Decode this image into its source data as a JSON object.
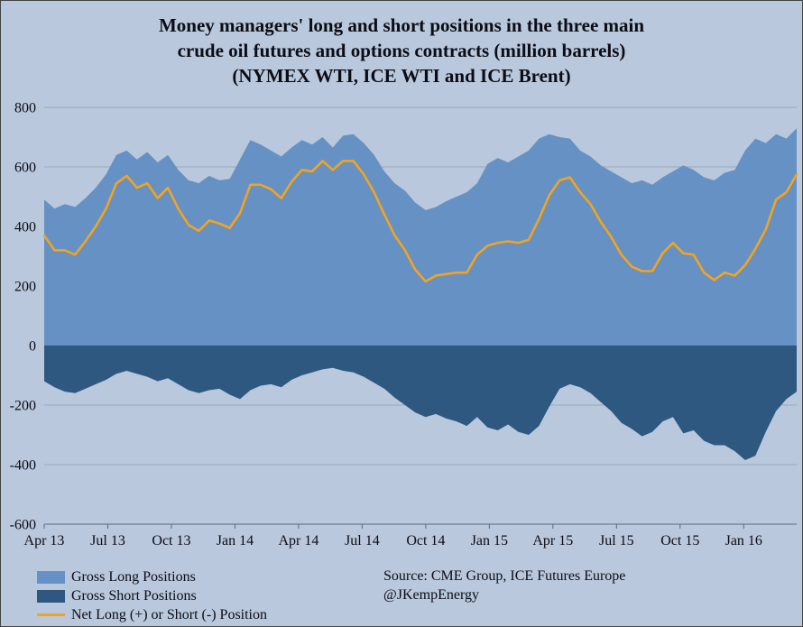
{
  "title": {
    "line1": "Money managers' long and short positions in the three main",
    "line2": "crude oil futures and options contracts (million barrels)",
    "line3": "(NYMEX WTI, ICE WTI and ICE Brent)"
  },
  "source": {
    "line1": "Source:  CME Group, ICE Futures Europe",
    "line2": "@JKempEnergy"
  },
  "legend": {
    "items": [
      {
        "label": "Gross Long Positions",
        "type": "area"
      },
      {
        "label": "Gross Short Positions",
        "type": "area"
      },
      {
        "label": "Net Long (+) or Short (-) Position",
        "type": "line"
      }
    ]
  },
  "colors": {
    "background": "#b9c8dc",
    "long_area": "#6591c4",
    "short_area": "#2e5880",
    "net_line": "#f2a41f",
    "grid": "#9aa9bd",
    "axis": "#5a6a80",
    "text": "#0c0c16"
  },
  "chart_data": {
    "type": "area",
    "title": "Money managers' long and short positions in the three main crude oil futures and options contracts (million barrels) (NYMEX WTI, ICE WTI and ICE Brent)",
    "xlabel": "",
    "ylabel": "",
    "ylim": [
      -600,
      800
    ],
    "yticks": [
      800,
      600,
      400,
      200,
      0,
      -200,
      -400,
      -600
    ],
    "grid": true,
    "legend_position": "bottom-left",
    "x_range_months": [
      0,
      35.5
    ],
    "xtick_months": [
      0,
      3,
      6,
      9,
      12,
      15,
      18,
      21,
      24,
      27,
      30,
      33
    ],
    "xtick_labels": [
      "Apr 13",
      "Jul 13",
      "Oct 13",
      "Jan 14",
      "Apr 14",
      "Jul 14",
      "Oct 14",
      "Jan 15",
      "Apr 15",
      "Jul 15",
      "Oct 15",
      "Jan 16"
    ],
    "series": [
      {
        "name": "Gross Long Positions",
        "values": [
          490,
          460,
          475,
          465,
          495,
          530,
          575,
          640,
          655,
          625,
          650,
          615,
          640,
          590,
          555,
          545,
          570,
          555,
          560,
          625,
          690,
          675,
          655,
          635,
          665,
          690,
          675,
          700,
          665,
          705,
          710,
          680,
          640,
          585,
          545,
          520,
          480,
          455,
          465,
          485,
          500,
          515,
          545,
          610,
          630,
          615,
          635,
          655,
          695,
          710,
          700,
          695,
          655,
          635,
          605,
          585,
          565,
          545,
          555,
          540,
          565,
          585,
          605,
          590,
          565,
          555,
          580,
          590,
          655,
          695,
          680,
          710,
          695,
          730
        ]
      },
      {
        "name": "Gross Short Positions",
        "values": [
          -120,
          -140,
          -155,
          -160,
          -145,
          -130,
          -115,
          -95,
          -85,
          -95,
          -105,
          -120,
          -110,
          -130,
          -150,
          -160,
          -150,
          -145,
          -165,
          -180,
          -150,
          -135,
          -130,
          -140,
          -115,
          -100,
          -90,
          -80,
          -75,
          -85,
          -90,
          -105,
          -125,
          -145,
          -175,
          -200,
          -225,
          -240,
          -230,
          -245,
          -255,
          -270,
          -240,
          -275,
          -285,
          -265,
          -290,
          -300,
          -270,
          -205,
          -145,
          -130,
          -140,
          -160,
          -190,
          -220,
          -260,
          -280,
          -305,
          -290,
          -255,
          -240,
          -295,
          -285,
          -320,
          -335,
          -335,
          -355,
          -385,
          -370,
          -290,
          -220,
          -180,
          -155
        ]
      },
      {
        "name": "Net Long (+) or Short (-) Position",
        "values": [
          370,
          320,
          320,
          305,
          350,
          400,
          460,
          545,
          570,
          530,
          545,
          495,
          530,
          460,
          405,
          385,
          420,
          410,
          395,
          445,
          540,
          540,
          525,
          495,
          550,
          590,
          585,
          620,
          590,
          620,
          620,
          575,
          515,
          440,
          370,
          320,
          255,
          215,
          235,
          240,
          245,
          245,
          305,
          335,
          345,
          350,
          345,
          355,
          425,
          505,
          555,
          565,
          515,
          475,
          415,
          365,
          305,
          265,
          250,
          250,
          310,
          345,
          310,
          305,
          245,
          220,
          245,
          235,
          270,
          325,
          390,
          490,
          515,
          575
        ]
      }
    ]
  }
}
